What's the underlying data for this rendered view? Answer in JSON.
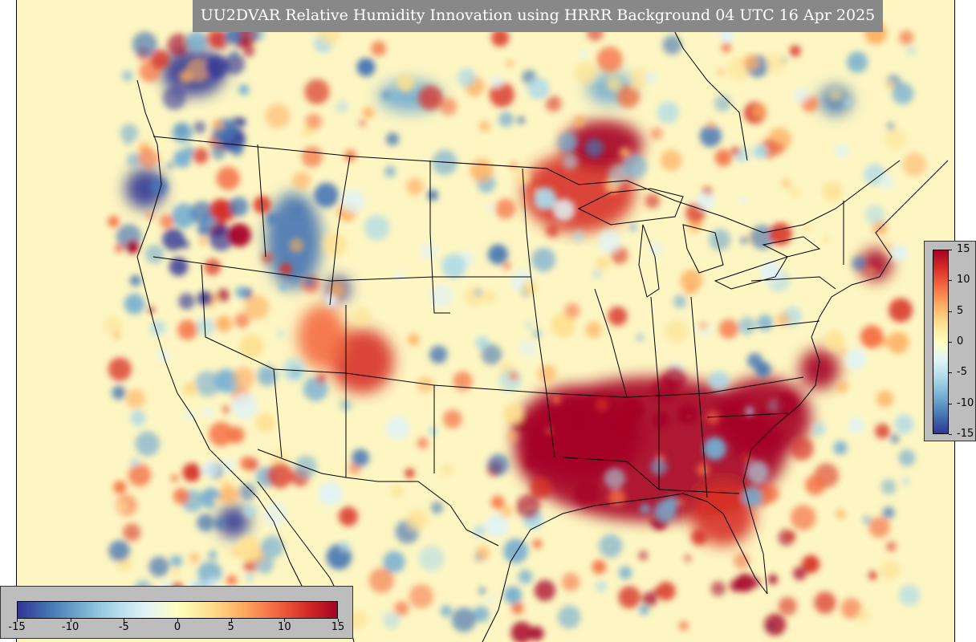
{
  "title": "UU2DVAR Relative Humidity Innovation using HRRR Background 04 UTC 16 Apr 2025",
  "colorbar": {
    "min": -15,
    "max": 15,
    "ticks": [
      "15",
      "10",
      "5",
      "0",
      "-5",
      "-10",
      "-15"
    ],
    "bottom_ticks": [
      "-15",
      "-10",
      "-5",
      "0",
      "5",
      "10",
      "15"
    ],
    "colors": [
      "#313695",
      "#4575b4",
      "#74add1",
      "#abd9e9",
      "#e0f3f8",
      "#ffffbf",
      "#fee090",
      "#fdae61",
      "#f46d43",
      "#d73027",
      "#a50026"
    ]
  },
  "map_colors": {
    "background": "#fdf6c3",
    "coast": "#000000"
  }
}
